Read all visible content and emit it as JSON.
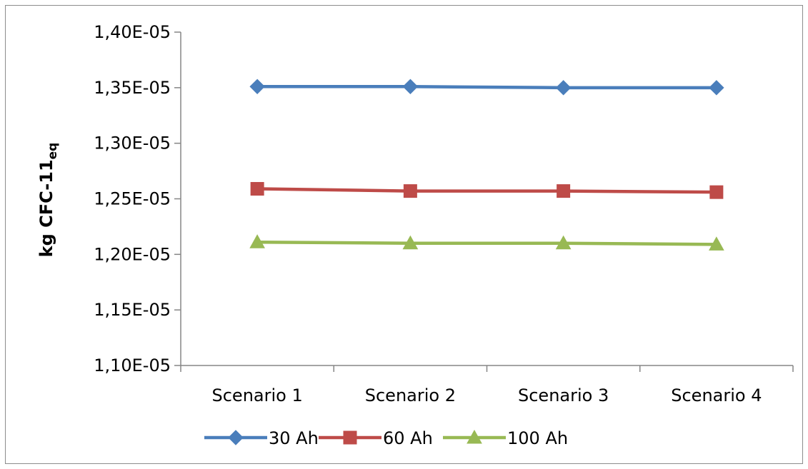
{
  "chart_data": {
    "type": "line",
    "title": "",
    "ylabel": "kg CFC-11",
    "ylabel_sub": "eq",
    "xlabel": "",
    "categories": [
      "Scenario 1",
      "Scenario 2",
      "Scenario 3",
      "Scenario 4"
    ],
    "ylim": [
      1.1e-05,
      1.4e-05
    ],
    "yticks": [
      1.1e-05,
      1.15e-05,
      1.2e-05,
      1.25e-05,
      1.3e-05,
      1.35e-05,
      1.4e-05
    ],
    "ytick_labels": [
      "1,10E-05",
      "1,15E-05",
      "1,20E-05",
      "1,25E-05",
      "1,30E-05",
      "1,35E-05",
      "1,40E-05"
    ],
    "grid": false,
    "legend_position": "bottom",
    "series": [
      {
        "name": "30 Ah",
        "color": "#4a7ebb",
        "marker": "diamond",
        "values": [
          1.351e-05,
          1.351e-05,
          1.35e-05,
          1.35e-05
        ]
      },
      {
        "name": "60 Ah",
        "color": "#be4b48",
        "marker": "square",
        "values": [
          1.259e-05,
          1.257e-05,
          1.257e-05,
          1.256e-05
        ]
      },
      {
        "name": "100 Ah",
        "color": "#98b954",
        "marker": "triangle",
        "values": [
          1.211e-05,
          1.21e-05,
          1.21e-05,
          1.209e-05
        ]
      }
    ]
  }
}
